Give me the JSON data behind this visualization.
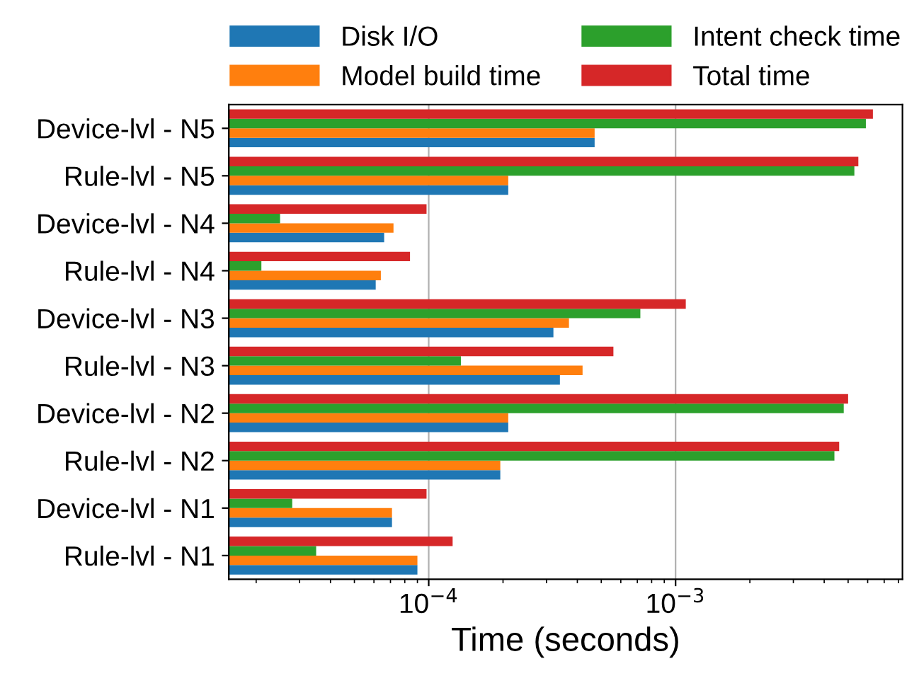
{
  "chart_data": {
    "type": "bar",
    "orientation": "horizontal",
    "log": "x",
    "xlabel": "Time (seconds)",
    "categories": [
      "Device-lvl - N5",
      "Rule-lvl - N5",
      "Device-lvl - N4",
      "Rule-lvl - N4",
      "Device-lvl - N3",
      "Rule-lvl - N3",
      "Device-lvl - N2",
      "Rule-lvl - N2",
      "Device-lvl - N1",
      "Rule-lvl - N1"
    ],
    "series": [
      {
        "name": "Disk I/O",
        "color": "#1f77b4",
        "values": [
          0.00047,
          0.00021,
          6.6e-05,
          6.1e-05,
          0.00032,
          0.00034,
          0.00021,
          0.000195,
          7.1e-05,
          9e-05
        ]
      },
      {
        "name": "Model build time",
        "color": "#ff7f0e",
        "values": [
          0.00047,
          0.00021,
          7.2e-05,
          6.4e-05,
          0.00037,
          0.00042,
          0.00021,
          0.000195,
          7.1e-05,
          9e-05
        ]
      },
      {
        "name": "Intent check time",
        "color": "#2ca02c",
        "values": [
          0.0059,
          0.0053,
          2.5e-05,
          2.1e-05,
          0.00072,
          0.000135,
          0.0048,
          0.0044,
          2.8e-05,
          3.5e-05
        ]
      },
      {
        "name": "Total time",
        "color": "#d62728",
        "values": [
          0.0063,
          0.0055,
          9.8e-05,
          8.4e-05,
          0.0011,
          0.00056,
          0.005,
          0.0046,
          9.8e-05,
          0.000125
        ]
      }
    ],
    "xlim": [
      1.55e-05,
      0.0083
    ],
    "xticks": [
      {
        "value": 0.0001,
        "label": "10$^{−4}$"
      },
      {
        "value": 0.001,
        "label": "10$^{−3}$"
      }
    ],
    "grid": "x",
    "legend": "top"
  }
}
